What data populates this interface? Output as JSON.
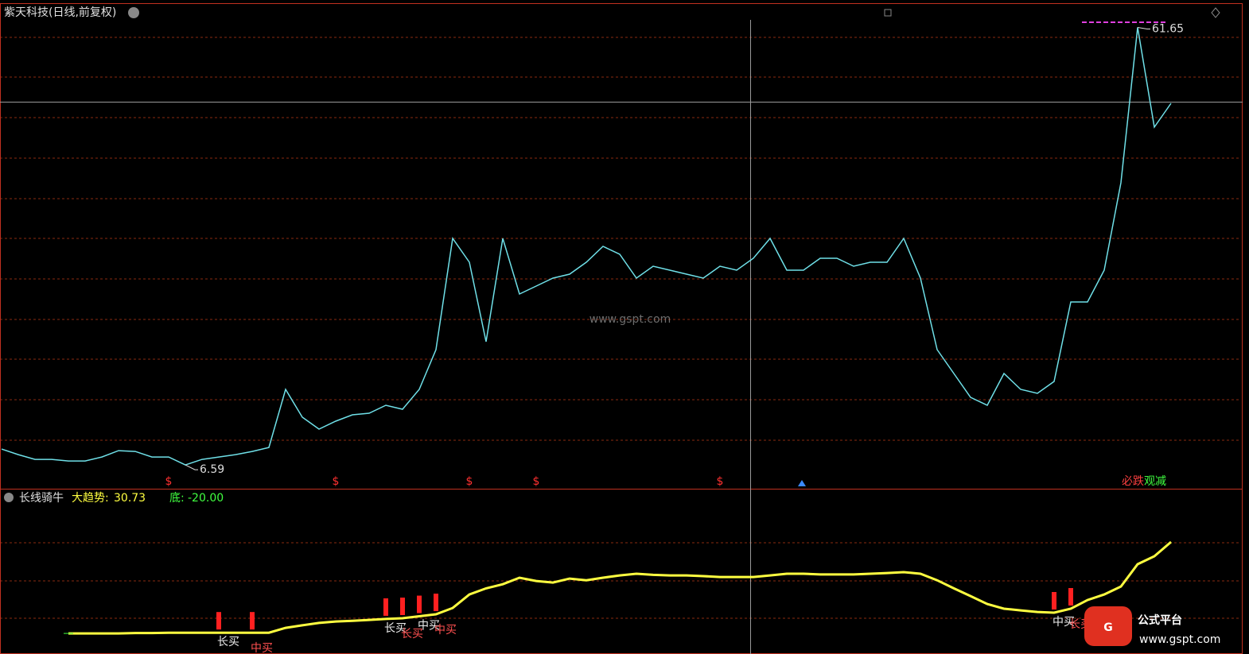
{
  "chart_data": [
    {
      "type": "line",
      "title": "紫天科技(日线,前复权)",
      "ylim": [
        3.9,
        64.6
      ],
      "series": [
        {
          "name": null,
          "color": "#6fe0e8",
          "values": [
            8.59,
            7.89,
            7.29,
            7.29,
            7.09,
            7.09,
            7.59,
            8.39,
            8.29,
            7.59,
            7.59,
            6.59,
            7.29,
            7.59,
            7.89,
            8.29,
            8.79,
            16.1,
            12.6,
            11.1,
            12.1,
            12.9,
            13.1,
            14.1,
            13.6,
            16.1,
            21.1,
            35.1,
            32.1,
            22.1,
            35.1,
            28.1,
            29.1,
            30.1,
            30.6,
            32.1,
            34.1,
            33.1,
            30.1,
            31.6,
            31.1,
            30.6,
            30.1,
            31.6,
            31.1,
            32.6,
            35.1,
            31.1,
            31.1,
            32.6,
            32.6,
            31.6,
            32.1,
            32.1,
            35.1,
            30.1,
            21.1,
            18.1,
            15.1,
            14.1,
            18.1,
            16.1,
            15.6,
            17.1,
            27.1,
            27.1,
            31.1,
            42.1,
            61.65,
            49.1,
            52.1
          ]
        }
      ],
      "annotations": [
        {
          "index": 68,
          "position": "max"
        },
        {
          "index": 11,
          "position": "min"
        }
      ],
      "markers": [
        {
          "index": 10,
          "label": "$"
        },
        {
          "index": 20,
          "label": "$"
        },
        {
          "index": 28,
          "label": "$"
        },
        {
          "index": 32,
          "label": "$"
        },
        {
          "index": 43,
          "label": "$"
        }
      ],
      "status_tags": [
        {
          "label": "必跌",
          "color": "#ff4040"
        },
        {
          "label": "观减",
          "color": "#40ff40"
        }
      ],
      "watermark": "www.gspt.com"
    },
    {
      "type": "line",
      "title": "长线骑牛",
      "ylim": [
        -30.1,
        59.4
      ],
      "series": [
        {
          "name": "大趋势:",
          "color": "#ffff40",
          "values": [
            null,
            null,
            null,
            null,
            -20,
            -20,
            -20,
            -20,
            -19.8,
            -19.8,
            -19.6,
            -19.6,
            -19.6,
            -19.6,
            -19.6,
            -19.6,
            -19.6,
            -16.9,
            -15.5,
            -14.2,
            -13.4,
            -13.0,
            -12.5,
            -12.0,
            -11.6,
            -10.5,
            -9.4,
            -5.9,
            1.6,
            5.0,
            7.3,
            10.9,
            9.1,
            8.2,
            10.4,
            9.5,
            10.9,
            12.2,
            13.1,
            12.5,
            12.2,
            12.2,
            11.8,
            11.3,
            11.3,
            11.3,
            12.2,
            13.1,
            13.1,
            12.7,
            12.7,
            12.7,
            13.1,
            13.5,
            14.0,
            13.1,
            9.5,
            5.0,
            0.7,
            -3.7,
            -6.3,
            -7.2,
            -8.1,
            -8.5,
            -6.3,
            -1.5,
            1.6,
            6.0,
            18.4,
            22.8,
            30.73
          ]
        }
      ],
      "floor": {
        "name": "底:",
        "color": "#40ff40",
        "value": {
          "value": -20,
          "label": "-20.00"
        }
      },
      "signals": [
        {
          "index": 13,
          "label": "长买"
        },
        {
          "index": 15,
          "label": "中买"
        },
        {
          "index": 23,
          "label": "长买"
        },
        {
          "index": 24,
          "label": "长买"
        },
        {
          "index": 25,
          "label": "中买"
        },
        {
          "index": 26,
          "label": "中买"
        },
        {
          "index": 63,
          "label": "中买"
        },
        {
          "index": 64,
          "label": "长买"
        }
      ],
      "logo": {
        "name": "公式平台",
        "url": "www.gspt.com"
      }
    }
  ]
}
